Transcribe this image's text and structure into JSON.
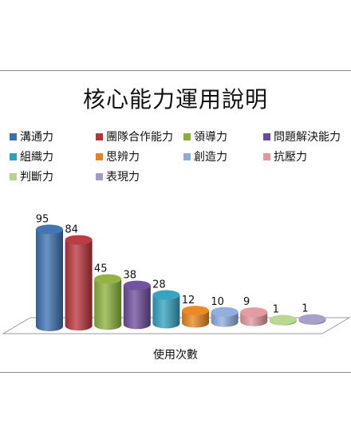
{
  "chart_data": {
    "type": "bar",
    "style": "3d-cylinder",
    "title": "核心能力運用說明",
    "xlabel": "使用次數",
    "ylabel": "",
    "ylim": [
      0,
      100
    ],
    "legend_position": "top",
    "grid": false,
    "categories": [
      "溝通力",
      "團隊合作能力",
      "領導力",
      "問題解決能力",
      "組織力",
      "思辨力",
      "創造力",
      "抗壓力",
      "判斷力",
      "表現力"
    ],
    "series": [
      {
        "name": "溝通力",
        "value": 95,
        "color": "#3a6fb0"
      },
      {
        "name": "團隊合作能力",
        "value": 84,
        "color": "#b8323a"
      },
      {
        "name": "領導力",
        "value": 45,
        "color": "#8bb03a"
      },
      {
        "name": "問題解決能力",
        "value": 38,
        "color": "#6a4a99"
      },
      {
        "name": "組織力",
        "value": 28,
        "color": "#2f9fbf"
      },
      {
        "name": "思辨力",
        "value": 12,
        "color": "#e8841c"
      },
      {
        "name": "創造力",
        "value": 10,
        "color": "#8eaade"
      },
      {
        "name": "抗壓力",
        "value": 9,
        "color": "#e2979a"
      },
      {
        "name": "判斷力",
        "value": 1,
        "color": "#b5d68a"
      },
      {
        "name": "表現力",
        "value": 1,
        "color": "#a49ac7"
      }
    ]
  }
}
